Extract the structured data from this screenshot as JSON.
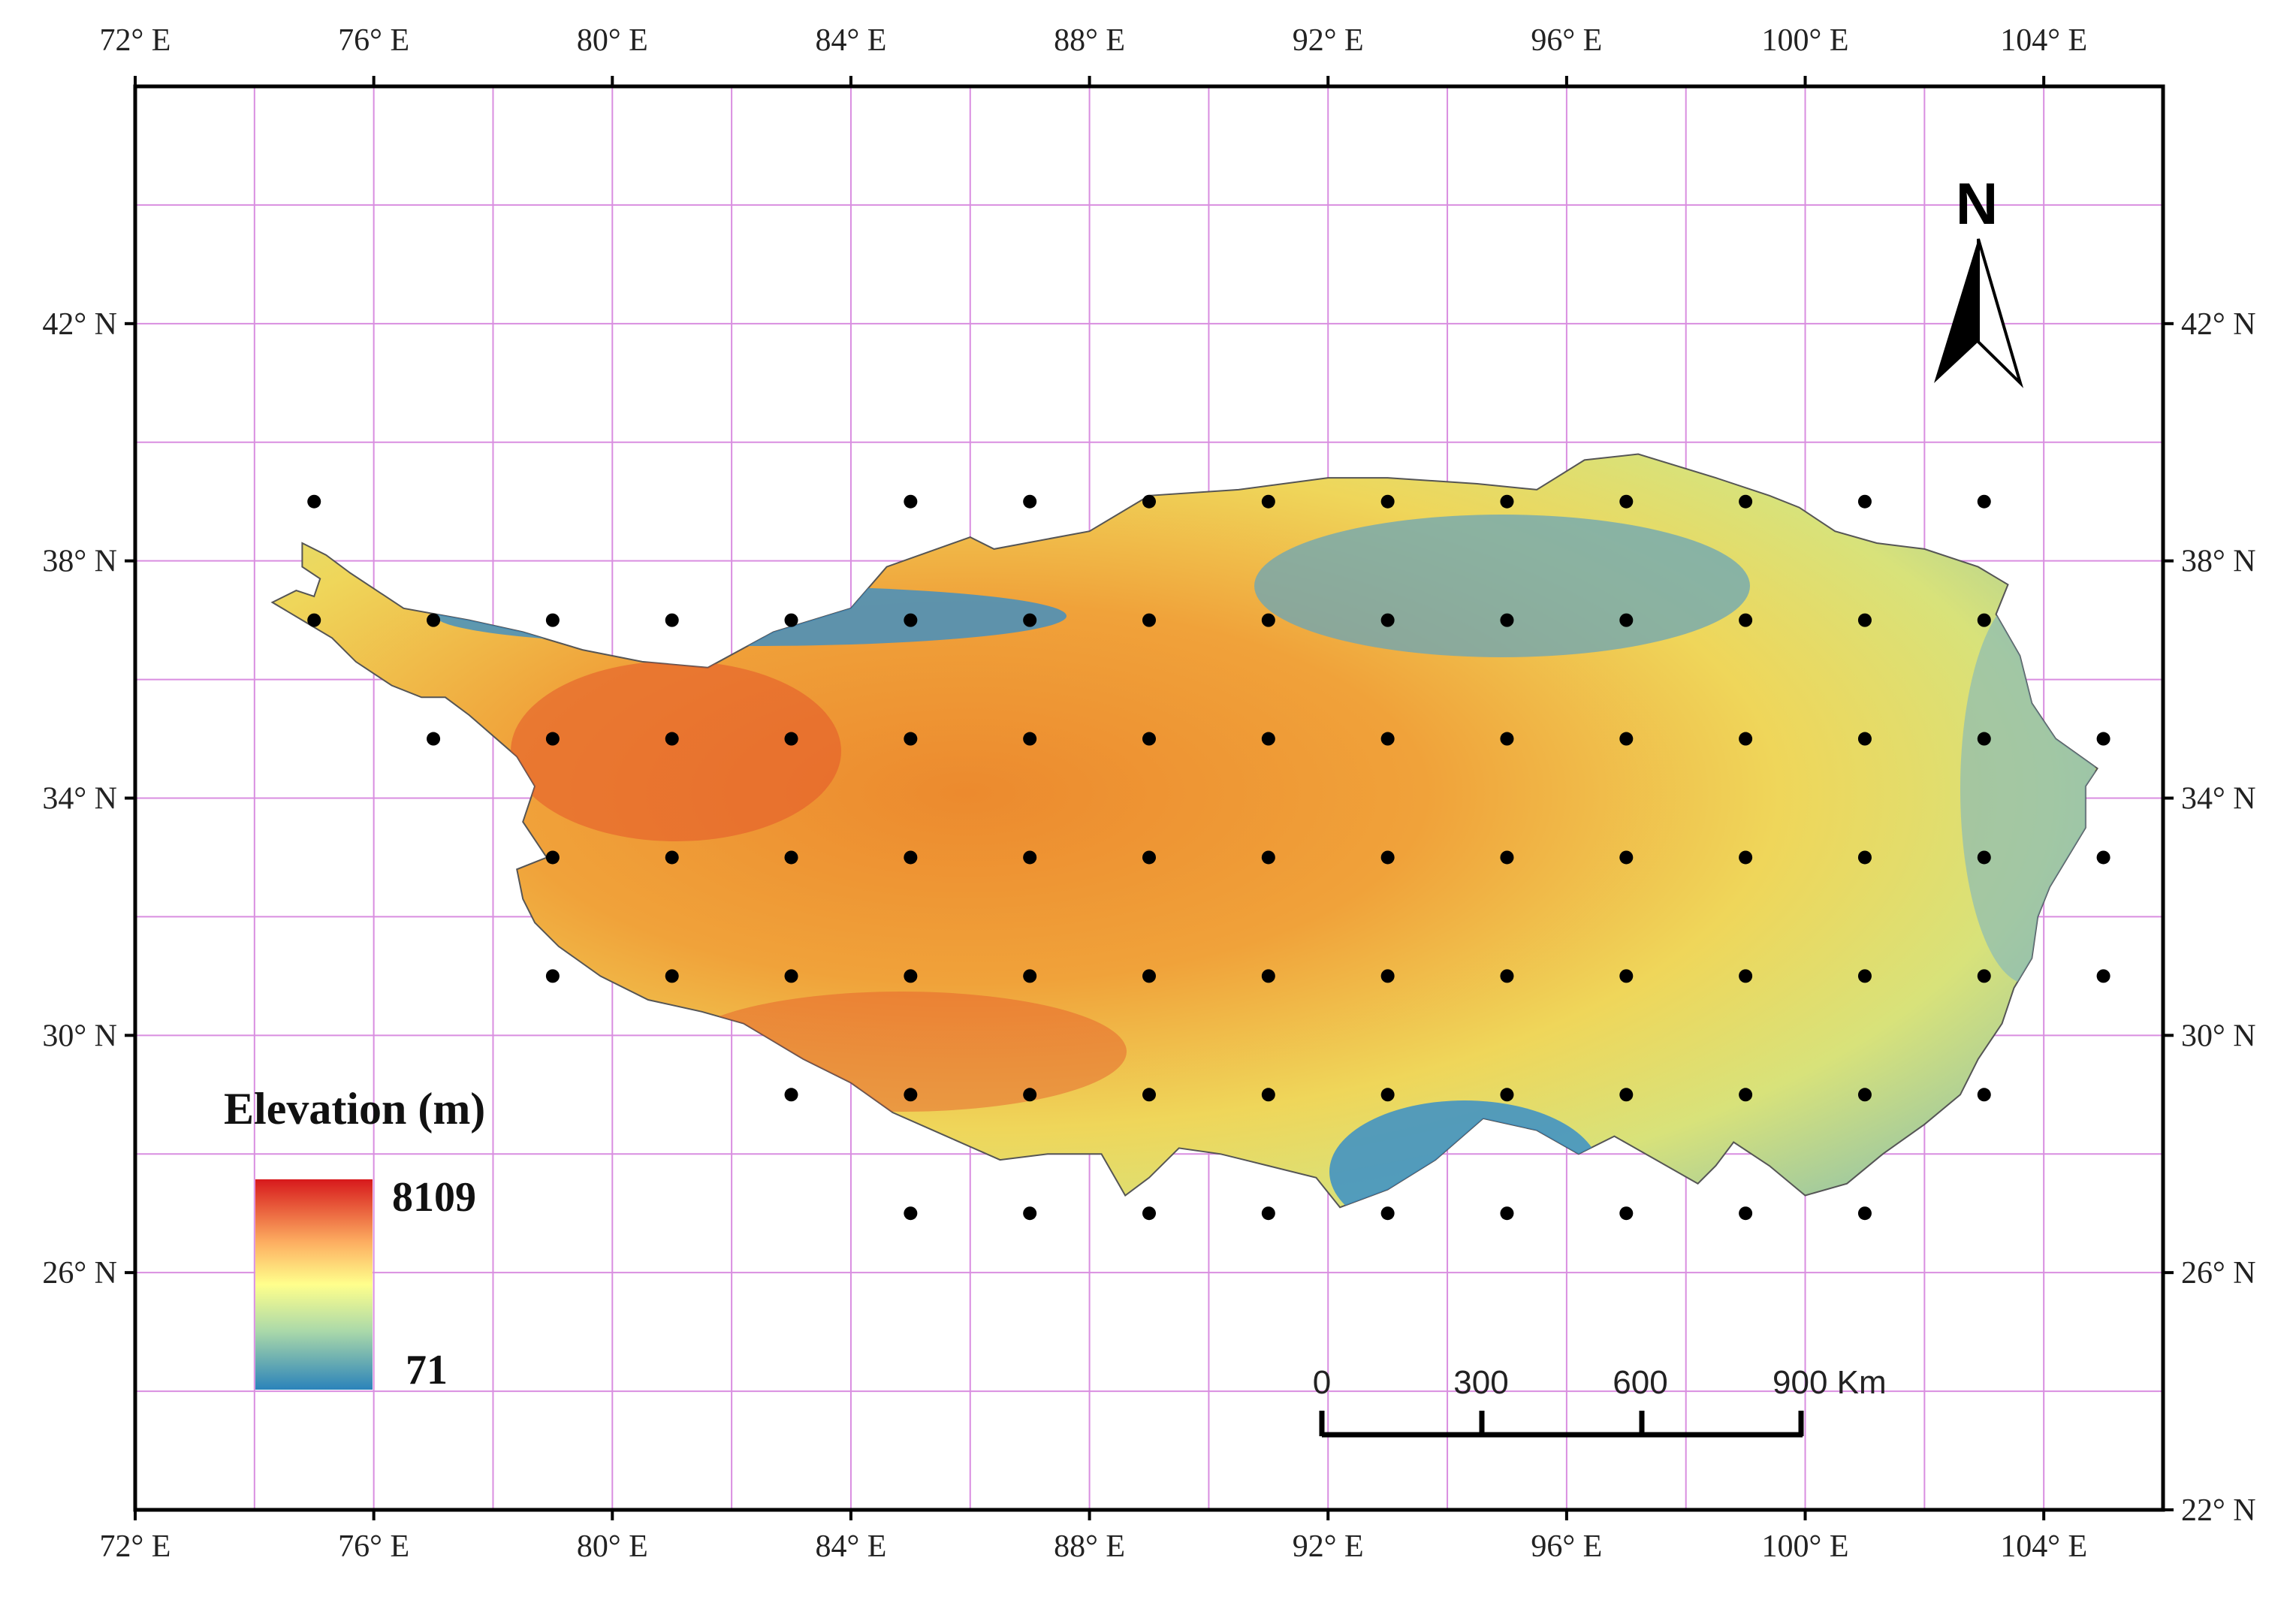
{
  "map": {
    "type": "elevation map with sampling grid",
    "extent": {
      "lon": [
        72,
        106
      ],
      "lat": [
        22,
        46
      ]
    },
    "x_ticks": [
      {
        "lon": 72,
        "label": "72° E"
      },
      {
        "lon": 76,
        "label": "76° E"
      },
      {
        "lon": 80,
        "label": "80° E"
      },
      {
        "lon": 84,
        "label": "84° E"
      },
      {
        "lon": 88,
        "label": "88° E"
      },
      {
        "lon": 92,
        "label": "92° E"
      },
      {
        "lon": 96,
        "label": "96° E"
      },
      {
        "lon": 100,
        "label": "100° E"
      },
      {
        "lon": 104,
        "label": "104° E"
      }
    ],
    "y_ticks": [
      {
        "lat": 42,
        "label": "42° N"
      },
      {
        "lat": 38,
        "label": "38° N"
      },
      {
        "lat": 34,
        "label": "34° N"
      },
      {
        "lat": 30,
        "label": "30° N"
      },
      {
        "lat": 26,
        "label": "26° N"
      }
    ],
    "y_tick_bottom_right": {
      "lat": 22,
      "label": "22° N"
    },
    "gridline_lons": [
      74,
      76,
      78,
      80,
      82,
      84,
      86,
      88,
      90,
      92,
      94,
      96,
      98,
      100,
      102,
      104
    ],
    "gridline_lats": [
      24,
      26,
      28,
      30,
      32,
      34,
      36,
      38,
      40,
      42,
      44
    ],
    "sample_points": [
      [
        75,
        39
      ],
      [
        85,
        39
      ],
      [
        87,
        39
      ],
      [
        89,
        39
      ],
      [
        91,
        39
      ],
      [
        93,
        39
      ],
      [
        95,
        39
      ],
      [
        97,
        39
      ],
      [
        99,
        39
      ],
      [
        101,
        39
      ],
      [
        103,
        39
      ],
      [
        75,
        37
      ],
      [
        77,
        37
      ],
      [
        79,
        37
      ],
      [
        81,
        37
      ],
      [
        83,
        37
      ],
      [
        85,
        37
      ],
      [
        87,
        37
      ],
      [
        89,
        37
      ],
      [
        91,
        37
      ],
      [
        93,
        37
      ],
      [
        95,
        37
      ],
      [
        97,
        37
      ],
      [
        99,
        37
      ],
      [
        101,
        37
      ],
      [
        103,
        37
      ],
      [
        77,
        35
      ],
      [
        79,
        35
      ],
      [
        81,
        35
      ],
      [
        83,
        35
      ],
      [
        85,
        35
      ],
      [
        87,
        35
      ],
      [
        89,
        35
      ],
      [
        91,
        35
      ],
      [
        93,
        35
      ],
      [
        95,
        35
      ],
      [
        97,
        35
      ],
      [
        99,
        35
      ],
      [
        101,
        35
      ],
      [
        103,
        35
      ],
      [
        105,
        35
      ],
      [
        79,
        33
      ],
      [
        81,
        33
      ],
      [
        83,
        33
      ],
      [
        85,
        33
      ],
      [
        87,
        33
      ],
      [
        89,
        33
      ],
      [
        91,
        33
      ],
      [
        93,
        33
      ],
      [
        95,
        33
      ],
      [
        97,
        33
      ],
      [
        99,
        33
      ],
      [
        101,
        33
      ],
      [
        103,
        33
      ],
      [
        105,
        33
      ],
      [
        79,
        31
      ],
      [
        81,
        31
      ],
      [
        83,
        31
      ],
      [
        85,
        31
      ],
      [
        87,
        31
      ],
      [
        89,
        31
      ],
      [
        91,
        31
      ],
      [
        93,
        31
      ],
      [
        95,
        31
      ],
      [
        97,
        31
      ],
      [
        99,
        31
      ],
      [
        101,
        31
      ],
      [
        103,
        31
      ],
      [
        105,
        31
      ],
      [
        83,
        29
      ],
      [
        85,
        29
      ],
      [
        87,
        29
      ],
      [
        89,
        29
      ],
      [
        91,
        29
      ],
      [
        93,
        29
      ],
      [
        95,
        29
      ],
      [
        97,
        29
      ],
      [
        99,
        29
      ],
      [
        101,
        29
      ],
      [
        103,
        29
      ],
      [
        85,
        27
      ],
      [
        87,
        27
      ],
      [
        89,
        27
      ],
      [
        91,
        27
      ],
      [
        93,
        27
      ],
      [
        95,
        27
      ],
      [
        97,
        27
      ],
      [
        99,
        27
      ],
      [
        101,
        27
      ]
    ],
    "region_outline": [
      [
        74.3,
        37.3
      ],
      [
        74.7,
        37.5
      ],
      [
        75.0,
        37.4
      ],
      [
        75.1,
        37.7
      ],
      [
        74.8,
        37.9
      ],
      [
        74.8,
        38.3
      ],
      [
        75.2,
        38.1
      ],
      [
        75.6,
        37.8
      ],
      [
        76.5,
        37.2
      ],
      [
        77.6,
        37.0
      ],
      [
        78.5,
        36.8
      ],
      [
        79.5,
        36.5
      ],
      [
        80.5,
        36.3
      ],
      [
        81.6,
        36.2
      ],
      [
        82.7,
        36.8
      ],
      [
        84.0,
        37.2
      ],
      [
        84.6,
        37.9
      ],
      [
        86.0,
        38.4
      ],
      [
        86.4,
        38.2
      ],
      [
        88.0,
        38.5
      ],
      [
        89.0,
        39.1
      ],
      [
        90.5,
        39.2
      ],
      [
        92.0,
        39.4
      ],
      [
        93.0,
        39.4
      ],
      [
        94.5,
        39.3
      ],
      [
        95.5,
        39.2
      ],
      [
        96.3,
        39.7
      ],
      [
        97.2,
        39.8
      ],
      [
        98.5,
        39.4
      ],
      [
        99.4,
        39.1
      ],
      [
        99.9,
        38.9
      ],
      [
        100.5,
        38.5
      ],
      [
        101.2,
        38.3
      ],
      [
        102.0,
        38.2
      ],
      [
        102.9,
        37.9
      ],
      [
        103.4,
        37.6
      ],
      [
        103.2,
        37.1
      ],
      [
        103.6,
        36.4
      ],
      [
        103.8,
        35.6
      ],
      [
        104.2,
        35.0
      ],
      [
        104.9,
        34.5
      ],
      [
        104.7,
        34.2
      ],
      [
        104.7,
        33.5
      ],
      [
        104.4,
        33.0
      ],
      [
        104.1,
        32.5
      ],
      [
        103.9,
        32.0
      ],
      [
        103.8,
        31.3
      ],
      [
        103.5,
        30.8
      ],
      [
        103.3,
        30.2
      ],
      [
        102.9,
        29.6
      ],
      [
        102.6,
        29.0
      ],
      [
        102.0,
        28.5
      ],
      [
        101.3,
        28.0
      ],
      [
        100.7,
        27.5
      ],
      [
        100.0,
        27.3
      ],
      [
        99.4,
        27.8
      ],
      [
        98.8,
        28.2
      ],
      [
        98.5,
        27.8
      ],
      [
        98.2,
        27.5
      ],
      [
        97.5,
        27.9
      ],
      [
        96.8,
        28.3
      ],
      [
        96.2,
        28.0
      ],
      [
        95.5,
        28.4
      ],
      [
        94.6,
        28.6
      ],
      [
        93.8,
        27.9
      ],
      [
        93.0,
        27.4
      ],
      [
        92.2,
        27.1
      ],
      [
        91.8,
        27.6
      ],
      [
        91.0,
        27.8
      ],
      [
        90.2,
        28.0
      ],
      [
        89.5,
        28.1
      ],
      [
        89.0,
        27.6
      ],
      [
        88.6,
        27.3
      ],
      [
        88.2,
        28.0
      ],
      [
        87.3,
        28.0
      ],
      [
        86.5,
        27.9
      ],
      [
        85.6,
        28.3
      ],
      [
        84.7,
        28.7
      ],
      [
        84.0,
        29.2
      ],
      [
        83.2,
        29.6
      ],
      [
        82.2,
        30.2
      ],
      [
        81.5,
        30.4
      ],
      [
        80.6,
        30.6
      ],
      [
        79.8,
        31.0
      ],
      [
        79.1,
        31.5
      ],
      [
        78.7,
        31.9
      ],
      [
        78.5,
        32.3
      ],
      [
        78.4,
        32.8
      ],
      [
        78.9,
        33.0
      ],
      [
        78.5,
        33.6
      ],
      [
        78.7,
        34.2
      ],
      [
        78.4,
        34.7
      ],
      [
        77.6,
        35.4
      ],
      [
        77.2,
        35.7
      ],
      [
        76.8,
        35.7
      ],
      [
        76.3,
        35.9
      ],
      [
        75.7,
        36.3
      ],
      [
        75.3,
        36.7
      ],
      [
        74.8,
        37.0
      ],
      [
        74.3,
        37.3
      ]
    ]
  },
  "legend": {
    "title": "Elevation (m)",
    "max_label": "8109",
    "min_label": "71",
    "max_value": 8109,
    "min_value": 71,
    "colors": [
      "#d7191c",
      "#fdae61",
      "#ffff8c",
      "#abd9a9",
      "#2b83ba"
    ]
  },
  "scale_bar": {
    "labels": [
      "0",
      "300",
      "600",
      "900 Km"
    ],
    "values_km": [
      0,
      300,
      600,
      900
    ]
  },
  "north_arrow": {
    "label": "N"
  },
  "colors": {
    "grid": "#d98ee0",
    "frame": "#000000",
    "points": "#000000",
    "high": "#e8561e",
    "mid": "#f2d24a",
    "low": "#3a8fc8"
  }
}
